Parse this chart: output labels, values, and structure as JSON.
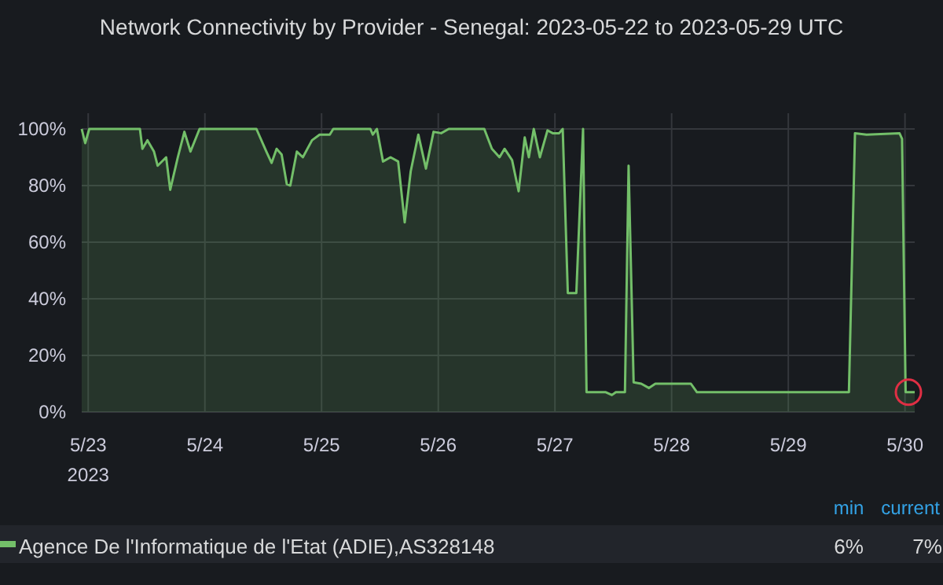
{
  "chart_data": {
    "type": "area",
    "title": "Network Connectivity by Provider - Senegal: 2023-05-22 to 2023-05-29 UTC",
    "xlim": [
      "2023-05-22T22:40",
      "2023-05-30T02:00"
    ],
    "xticks": [
      {
        "value": "2023-05-23",
        "label": "5/23\n2023"
      },
      {
        "value": "2023-05-24",
        "label": "5/24"
      },
      {
        "value": "2023-05-25",
        "label": "5/25"
      },
      {
        "value": "2023-05-26",
        "label": "5/26"
      },
      {
        "value": "2023-05-27",
        "label": "5/27"
      },
      {
        "value": "2023-05-28",
        "label": "5/28"
      },
      {
        "value": "2023-05-29",
        "label": "5/29"
      },
      {
        "value": "2023-05-30",
        "label": "5/30"
      }
    ],
    "ylim": [
      0,
      100
    ],
    "yticks": [
      {
        "value": 0,
        "label": "0%"
      },
      {
        "value": 20,
        "label": "20%"
      },
      {
        "value": 40,
        "label": "40%"
      },
      {
        "value": 60,
        "label": "60%"
      },
      {
        "value": 80,
        "label": "80%"
      },
      {
        "value": 100,
        "label": "100%"
      }
    ],
    "grid": true,
    "legend": "bottom",
    "annotations": [
      "min",
      "current",
      "6%",
      "7%"
    ],
    "series": [
      {
        "name": "Agence De l'Informatique de l'Etat (ADIE),AS328148",
        "color": "#73bf69",
        "x": [
          "2023-05-22T22:40",
          "2023-05-22T23:23",
          "2023-05-23T00:13",
          "2023-05-23T10:38",
          "2023-05-23T11:09",
          "2023-05-23T12:11",
          "2023-05-23T13:32",
          "2023-05-23T14:17",
          "2023-05-23T16:02",
          "2023-05-23T16:52",
          "2023-05-23T18:26",
          "2023-05-23T19:47",
          "2023-05-23T21:02",
          "2023-05-23T22:54",
          "2023-05-24T10:36",
          "2023-05-24T12:39",
          "2023-05-24T13:43",
          "2023-05-24T14:45",
          "2023-05-24T15:47",
          "2023-05-24T16:51",
          "2023-05-24T17:34",
          "2023-05-24T18:55",
          "2023-05-24T20:09",
          "2023-05-24T22:02",
          "2023-05-24T23:36",
          "2023-05-25T01:41",
          "2023-05-25T02:24",
          "2023-05-25T10:02",
          "2023-05-25T10:32",
          "2023-05-25T11:23",
          "2023-05-25T12:38",
          "2023-05-25T14:11",
          "2023-05-25T15:45",
          "2023-05-25T17:06",
          "2023-05-25T18:20",
          "2023-05-25T19:54",
          "2023-05-25T21:28",
          "2023-05-25T23:02",
          "2023-05-26T00:36",
          "2023-05-26T02:09",
          "2023-05-26T09:28",
          "2023-05-26T11:02",
          "2023-05-26T12:36",
          "2023-05-26T13:38",
          "2023-05-26T15:11",
          "2023-05-26T16:32",
          "2023-05-26T17:47",
          "2023-05-26T18:38",
          "2023-05-26T19:39",
          "2023-05-26T20:54",
          "2023-05-26T22:28",
          "2023-05-26T23:32",
          "2023-05-27T00:52",
          "2023-05-27T01:36",
          "2023-05-27T02:39",
          "2023-05-27T04:24",
          "2023-05-27T05:47",
          "2023-05-27T06:30",
          "2023-05-27T10:28",
          "2023-05-27T11:43",
          "2023-05-27T12:32",
          "2023-05-27T14:24",
          "2023-05-27T15:09",
          "2023-05-27T16:11",
          "2023-05-27T17:45",
          "2023-05-27T19:19",
          "2023-05-27T20:39",
          "2023-05-27T21:54",
          "2023-05-28T03:58",
          "2023-05-28T05:13",
          "2023-05-29T12:28",
          "2023-05-29T13:43",
          "2023-05-29T16:06",
          "2023-05-29T22:52",
          "2023-05-29T23:24",
          "2023-05-30T00:08",
          "2023-05-30T02:00"
        ],
        "values": [
          100,
          95,
          100,
          100,
          93,
          96,
          92,
          87,
          90,
          78.5,
          90,
          99,
          92,
          100,
          100,
          92,
          88,
          93,
          91,
          80.5,
          80,
          92,
          90,
          96,
          98,
          98,
          100,
          100,
          98,
          100,
          88.5,
          90,
          88.5,
          67,
          85,
          98,
          86,
          99,
          98.5,
          100,
          100,
          93,
          90,
          93,
          89,
          78,
          97,
          90,
          100,
          90,
          99.5,
          98.5,
          98.5,
          100,
          42,
          42,
          100,
          7,
          7,
          6,
          7,
          7,
          87,
          10.5,
          10,
          8.5,
          10,
          10,
          10,
          7,
          7,
          98.5,
          98,
          98.5,
          96.5,
          7,
          7
        ]
      }
    ]
  }
}
